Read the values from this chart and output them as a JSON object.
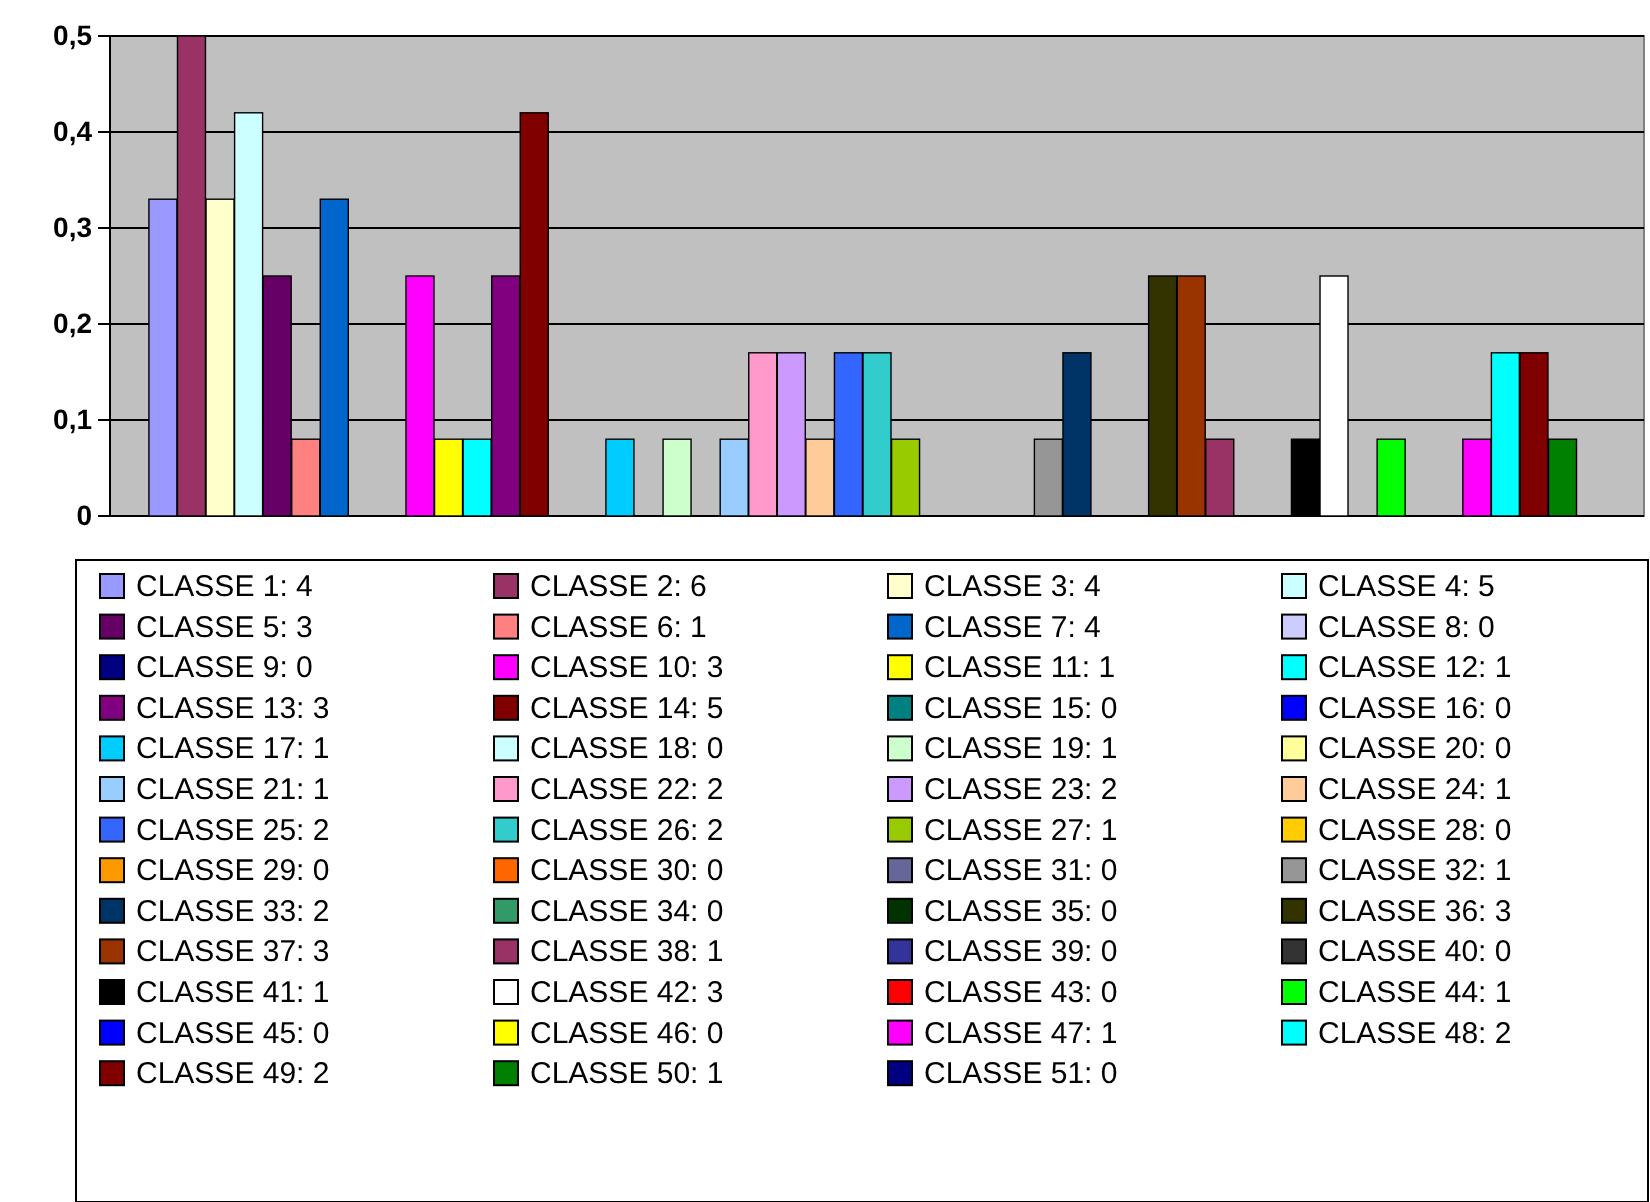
{
  "chart_data": {
    "type": "bar",
    "categories": [
      null
    ],
    "ylim": [
      0,
      0.5
    ],
    "yticks": [
      {
        "value": 0,
        "label": "0"
      },
      {
        "value": 0.1,
        "label": "0,1"
      },
      {
        "value": 0.2,
        "label": "0,2"
      },
      {
        "value": 0.3,
        "label": "0,3"
      },
      {
        "value": 0.4,
        "label": "0,4"
      },
      {
        "value": 0.5,
        "label": "0,5"
      }
    ],
    "grid": "y",
    "legend": "bottom",
    "series": [
      {
        "name": "CLASSE 1: 4",
        "color": "#9999ff",
        "values": [
          0.33
        ]
      },
      {
        "name": "CLASSE 2: 6",
        "color": "#993366",
        "values": [
          0.5
        ]
      },
      {
        "name": "CLASSE 3: 4",
        "color": "#ffffcc",
        "values": [
          0.33
        ]
      },
      {
        "name": "CLASSE 4: 5",
        "color": "#ccffff",
        "values": [
          0.42
        ]
      },
      {
        "name": "CLASSE 5: 3",
        "color": "#660066",
        "values": [
          0.25
        ]
      },
      {
        "name": "CLASSE 6: 1",
        "color": "#ff8080",
        "values": [
          0.08
        ]
      },
      {
        "name": "CLASSE 7: 4",
        "color": "#0066cc",
        "values": [
          0.33
        ]
      },
      {
        "name": "CLASSE 8: 0",
        "color": "#ccccff",
        "values": [
          0
        ]
      },
      {
        "name": "CLASSE 9: 0",
        "color": "#000080",
        "values": [
          0
        ]
      },
      {
        "name": "CLASSE 10: 3",
        "color": "#ff00ff",
        "values": [
          0.25
        ]
      },
      {
        "name": "CLASSE 11: 1",
        "color": "#ffff00",
        "values": [
          0.08
        ]
      },
      {
        "name": "CLASSE 12: 1",
        "color": "#00ffff",
        "values": [
          0.08
        ]
      },
      {
        "name": "CLASSE 13: 3",
        "color": "#800080",
        "values": [
          0.25
        ]
      },
      {
        "name": "CLASSE 14: 5",
        "color": "#800000",
        "values": [
          0.42
        ]
      },
      {
        "name": "CLASSE 15: 0",
        "color": "#008080",
        "values": [
          0
        ]
      },
      {
        "name": "CLASSE 16: 0",
        "color": "#0000ff",
        "values": [
          0
        ]
      },
      {
        "name": "CLASSE 17: 1",
        "color": "#00ccff",
        "values": [
          0.08
        ]
      },
      {
        "name": "CLASSE 18: 0",
        "color": "#ccffff",
        "values": [
          0
        ]
      },
      {
        "name": "CLASSE 19: 1",
        "color": "#ccffcc",
        "values": [
          0.08
        ]
      },
      {
        "name": "CLASSE 20: 0",
        "color": "#ffff99",
        "values": [
          0
        ]
      },
      {
        "name": "CLASSE 21: 1",
        "color": "#99ccff",
        "values": [
          0.08
        ]
      },
      {
        "name": "CLASSE 22: 2",
        "color": "#ff99cc",
        "values": [
          0.17
        ]
      },
      {
        "name": "CLASSE 23: 2",
        "color": "#cc99ff",
        "values": [
          0.17
        ]
      },
      {
        "name": "CLASSE 24: 1",
        "color": "#ffcc99",
        "values": [
          0.08
        ]
      },
      {
        "name": "CLASSE 25: 2",
        "color": "#3366ff",
        "values": [
          0.17
        ]
      },
      {
        "name": "CLASSE 26: 2",
        "color": "#33cccc",
        "values": [
          0.17
        ]
      },
      {
        "name": "CLASSE 27: 1",
        "color": "#99cc00",
        "values": [
          0.08
        ]
      },
      {
        "name": "CLASSE 28: 0",
        "color": "#ffcc00",
        "values": [
          0
        ]
      },
      {
        "name": "CLASSE 29: 0",
        "color": "#ff9900",
        "values": [
          0
        ]
      },
      {
        "name": "CLASSE 30: 0",
        "color": "#ff6600",
        "values": [
          0
        ]
      },
      {
        "name": "CLASSE 31: 0",
        "color": "#666699",
        "values": [
          0
        ]
      },
      {
        "name": "CLASSE 32: 1",
        "color": "#969696",
        "values": [
          0.08
        ]
      },
      {
        "name": "CLASSE 33: 2",
        "color": "#003366",
        "values": [
          0.17
        ]
      },
      {
        "name": "CLASSE 34: 0",
        "color": "#339966",
        "values": [
          0
        ]
      },
      {
        "name": "CLASSE 35: 0",
        "color": "#003300",
        "values": [
          0
        ]
      },
      {
        "name": "CLASSE 36: 3",
        "color": "#333300",
        "values": [
          0.25
        ]
      },
      {
        "name": "CLASSE 37: 3",
        "color": "#993300",
        "values": [
          0.25
        ]
      },
      {
        "name": "CLASSE 38: 1",
        "color": "#993366",
        "values": [
          0.08
        ]
      },
      {
        "name": "CLASSE 39: 0",
        "color": "#333399",
        "values": [
          0
        ]
      },
      {
        "name": "CLASSE 40: 0",
        "color": "#333333",
        "values": [
          0
        ]
      },
      {
        "name": "CLASSE 41: 1",
        "color": "#000000",
        "values": [
          0.08
        ]
      },
      {
        "name": "CLASSE 42: 3",
        "color": "#ffffff",
        "values": [
          0.25
        ]
      },
      {
        "name": "CLASSE 43: 0",
        "color": "#ff0000",
        "values": [
          0
        ]
      },
      {
        "name": "CLASSE 44: 1",
        "color": "#00ff00",
        "values": [
          0.08
        ]
      },
      {
        "name": "CLASSE 45: 0",
        "color": "#0000ff",
        "values": [
          0
        ]
      },
      {
        "name": "CLASSE 46: 0",
        "color": "#ffff00",
        "values": [
          0
        ]
      },
      {
        "name": "CLASSE 47: 1",
        "color": "#ff00ff",
        "values": [
          0.08
        ]
      },
      {
        "name": "CLASSE 48: 2",
        "color": "#00ffff",
        "values": [
          0.17
        ]
      },
      {
        "name": "CLASSE 49: 2",
        "color": "#800000",
        "values": [
          0.17
        ]
      },
      {
        "name": "CLASSE 50: 1",
        "color": "#008000",
        "values": [
          0.08
        ]
      },
      {
        "name": "CLASSE 51: 0",
        "color": "#000080",
        "values": [
          0
        ]
      }
    ]
  }
}
